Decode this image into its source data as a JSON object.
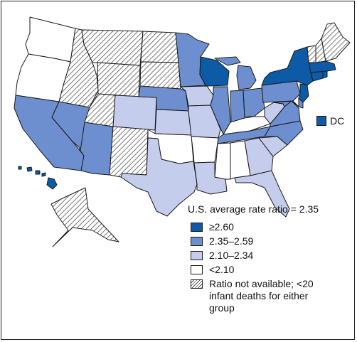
{
  "colors": {
    "dark": "#0d5aa7",
    "medium": "#6d8fcf",
    "light": "#c5cdec",
    "none": "#ffffff",
    "hatch": "#555555"
  },
  "dc": {
    "label": "DC",
    "category": "dark"
  },
  "legend": {
    "title": "U.S. average rate ratio = 2.35",
    "items": [
      {
        "category": "dark",
        "label": "≥2.60"
      },
      {
        "category": "medium",
        "label": "2.35–2.59"
      },
      {
        "category": "light",
        "label": "2.10–2.34"
      },
      {
        "category": "none",
        "label": "<2.10"
      },
      {
        "category": "hatch",
        "label": "Ratio not available; <20 infant deaths for either group"
      }
    ]
  },
  "states": {
    "WA": "none",
    "OR": "none",
    "CA": "medium",
    "NV": "medium",
    "ID": "hatch",
    "MT": "hatch",
    "WY": "hatch",
    "UT": "hatch",
    "AZ": "medium",
    "CO": "light",
    "NM": "hatch",
    "ND": "hatch",
    "SD": "hatch",
    "NE": "medium",
    "KS": "light",
    "OK": "none",
    "TX": "light",
    "MN": "medium",
    "IA": "light",
    "MO": "light",
    "AR": "none",
    "LA": "light",
    "WI": "dark",
    "IL": "medium",
    "MI": "medium",
    "IN": "medium",
    "OH": "medium",
    "KY": "none",
    "TN": "medium",
    "MS": "none",
    "AL": "none",
    "GA": "light",
    "FL": "light",
    "SC": "light",
    "NC": "medium",
    "VA": "medium",
    "WV": "light",
    "PA": "medium",
    "NY": "dark",
    "NJ": "dark",
    "DE": "medium",
    "MD": "medium",
    "CT": "dark",
    "RI": "dark",
    "MA": "dark",
    "VT": "hatch",
    "NH": "hatch",
    "ME": "hatch",
    "AK": "hatch",
    "HI": "dark"
  }
}
